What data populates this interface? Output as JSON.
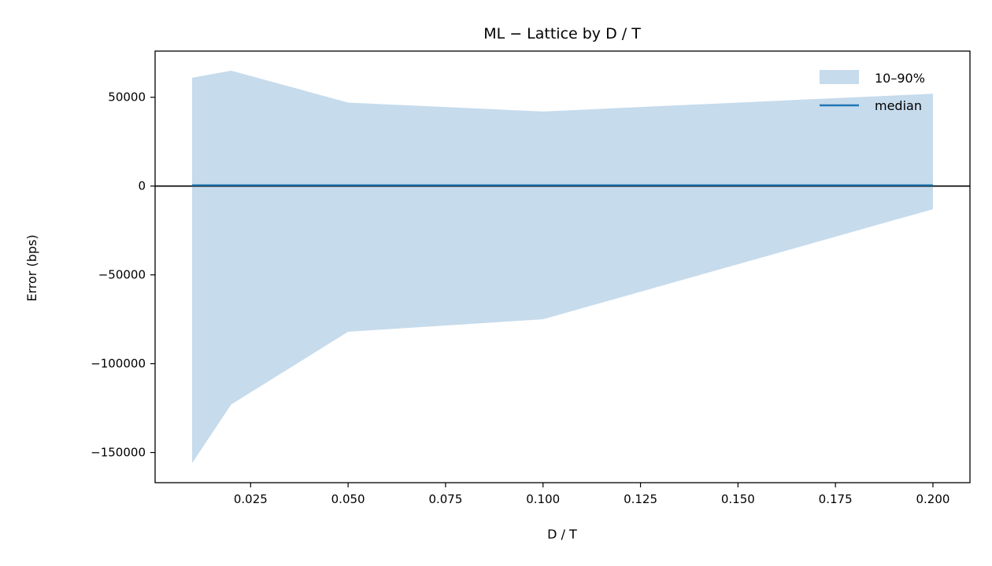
{
  "chart_data": {
    "type": "area",
    "title": "ML − Lattice by D / T",
    "xlabel": "D / T",
    "ylabel": "Error (bps)",
    "x": [
      0.01,
      0.02,
      0.05,
      0.1,
      0.2
    ],
    "series": [
      {
        "name": "10–90%",
        "kind": "band",
        "lower": [
          -156000,
          -123000,
          -82000,
          -75000,
          -13000
        ],
        "upper": [
          61000,
          65000,
          47000,
          42000,
          52000
        ],
        "color": "#c6dbec"
      },
      {
        "name": "median",
        "kind": "line",
        "values": [
          500,
          500,
          500,
          500,
          500
        ],
        "color": "#1f77b4"
      }
    ],
    "reference_line": {
      "y": 0,
      "color": "#000000"
    },
    "xlim": [
      0.0005,
      0.2095
    ],
    "ylim": [
      -167000,
      76000
    ],
    "xticks": [
      0.025,
      0.05,
      0.075,
      0.1,
      0.125,
      0.15,
      0.175,
      0.2
    ],
    "xtick_labels": [
      "0.025",
      "0.050",
      "0.075",
      "0.100",
      "0.125",
      "0.150",
      "0.175",
      "0.200"
    ],
    "yticks": [
      50000,
      0,
      -50000,
      -100000,
      -150000
    ],
    "ytick_labels": [
      "50000",
      "0",
      "−50000",
      "−100000",
      "−150000"
    ],
    "legend_position": "top-right",
    "grid": false
  }
}
